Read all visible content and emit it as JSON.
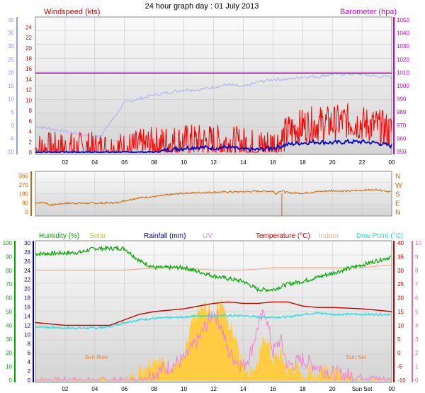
{
  "title": "24 hour graph day : 01 July 2013",
  "x_ticks": [
    "02",
    "04",
    "06",
    "08",
    "10",
    "12",
    "14",
    "16",
    "18",
    "20",
    "22",
    "00"
  ],
  "x_ticks_bottom": [
    "02",
    "04",
    "06",
    "08",
    "10",
    "12",
    "14",
    "16",
    "18",
    "20",
    "Sun Set",
    "00"
  ],
  "colors": {
    "wind": "#d00000",
    "gust": "#ff0000",
    "wind_avg": "#0000cc",
    "baro": "#cc00cc",
    "baro_line": "#aab0ee",
    "dir": "#cc6600",
    "humidity": "#00aa00",
    "solar": "#ffcc44",
    "rain": "#000088",
    "uv": "#ee88cc",
    "temp": "#cc0000",
    "indoor": "#f4b090",
    "dew": "#22dddd",
    "axis_wind": "#9999ee",
    "axis_dir": "#cc6600",
    "axis_uv": "#ee6699"
  },
  "chart_data": [
    {
      "type": "line",
      "name": "wind-baro",
      "title": "Windspeed (kts)",
      "ylabel_left": "Windspeed (kts)",
      "ylabel_right": "Barometer (hpa)",
      "left_ticks": [
        "-10",
        "-5",
        "0",
        "5",
        "10",
        "15",
        "20",
        "25",
        "30",
        "35",
        "40"
      ],
      "wind_ticks": [
        "0",
        "2",
        "4",
        "6",
        "8",
        "10",
        "12",
        "14",
        "16",
        "18",
        "20",
        "22",
        "24"
      ],
      "right_ticks": [
        "950",
        "960",
        "970",
        "980",
        "990",
        "1000",
        "1010",
        "1020",
        "1030",
        "1040",
        "1050"
      ],
      "ylim_wind": [
        0,
        25
      ],
      "ylim_baro": [
        950,
        1050
      ],
      "series": [
        {
          "name": "Barometer",
          "axis": "baro",
          "x": [
            0,
            24
          ],
          "values": [
            1009.5,
            1009.5
          ]
        },
        {
          "name": "Barometer",
          "axis": "baro2",
          "x": [
            0,
            2,
            4,
            4.5,
            5,
            5.5,
            6,
            8,
            10,
            11,
            12,
            13,
            14,
            15,
            16,
            17,
            18,
            19,
            20,
            21,
            22,
            23,
            24
          ],
          "values": [
            -2.5,
            -3.5,
            -4.5,
            -4,
            -2,
            0,
            2,
            3.5,
            4.5,
            4.5,
            5,
            5.5,
            5,
            6,
            6.5,
            6.5,
            7,
            7,
            7.5,
            7.5,
            7.5,
            7,
            7
          ]
        },
        {
          "name": "Wind",
          "axis": "wind",
          "x": [
            0,
            2,
            4,
            6,
            8,
            10,
            12,
            14,
            15,
            16,
            16.5,
            17,
            18,
            19,
            20,
            21,
            22,
            23,
            24
          ],
          "values": [
            0.5,
            0.5,
            0.5,
            0.5,
            1.5,
            2,
            2,
            1.5,
            1,
            1.5,
            2,
            4,
            5,
            5.5,
            5.5,
            6,
            5.5,
            5,
            4
          ]
        },
        {
          "name": "Wind",
          "axis": "wind",
          "x": [
            0,
            4,
            6,
            8,
            9,
            10,
            11,
            12,
            13,
            14,
            15,
            16,
            17,
            18,
            19,
            20,
            21,
            22,
            23,
            24
          ],
          "values": [
            0,
            0,
            0,
            0,
            0.5,
            0.8,
            1,
            0.8,
            1,
            0.5,
            0.5,
            0.8,
            1.5,
            1.8,
            2,
            1.8,
            2,
            2,
            1.8,
            1.2
          ]
        }
      ]
    },
    {
      "type": "line",
      "name": "direction",
      "ylim": [
        0,
        360
      ],
      "left_ticks": [
        "0",
        "90",
        "180",
        "270",
        "360"
      ],
      "right_labels": [
        "N",
        "W",
        "S",
        "E",
        "N"
      ],
      "x": [
        0,
        0.7,
        1,
        2,
        4,
        5.5,
        6,
        7,
        8,
        9,
        10,
        12,
        14,
        15,
        16,
        16.2,
        16.5,
        17,
        18,
        19,
        20,
        21,
        22,
        23,
        24
      ],
      "values": [
        90,
        90,
        65,
        85,
        85,
        90,
        110,
        140,
        150,
        170,
        185,
        195,
        200,
        205,
        205,
        180,
        210,
        190,
        185,
        200,
        210,
        205,
        215,
        220,
        200
      ]
    },
    {
      "type": "line",
      "name": "humidity-temp",
      "legend": [
        "Humidity (%)",
        "Solar",
        "Rainfall (mm)",
        "UV",
        "Temperature (°C)",
        "Indoor",
        "Dew Point (°C)"
      ],
      "humidity_ticks": [
        "0",
        "10",
        "20",
        "30",
        "40",
        "50",
        "60",
        "70",
        "80",
        "90",
        "100"
      ],
      "rain_ticks": [
        "0",
        "2",
        "4",
        "6",
        "8",
        "10",
        "12",
        "14",
        "16",
        "18",
        "20",
        "22",
        "24",
        "26",
        "28",
        "30"
      ],
      "temp_ticks": [
        "-10",
        "-5",
        "0",
        "5",
        "10",
        "15",
        "20",
        "25",
        "30",
        "35",
        "40"
      ],
      "uv_ticks": [
        "0",
        "1",
        "2",
        "3",
        "4",
        "5",
        "6",
        "7",
        "8",
        "9",
        "10"
      ],
      "annotations": [
        "Sun Rise",
        "Sun Set"
      ],
      "series": [
        {
          "name": "Humidity (%)",
          "axis": "humidity",
          "x": [
            0,
            3,
            4,
            6,
            7,
            8,
            10,
            12,
            14,
            15,
            16,
            17,
            18,
            20,
            22,
            24
          ],
          "values": [
            92,
            93,
            96,
            96,
            87,
            82,
            82,
            76,
            72,
            66,
            66,
            70,
            72,
            78,
            84,
            90
          ]
        },
        {
          "name": "Indoor",
          "axis": "temp",
          "x": [
            0,
            2,
            4,
            6,
            8,
            10,
            12,
            14,
            16,
            18,
            20,
            22,
            24
          ],
          "values": [
            30,
            30,
            30,
            30,
            31,
            31,
            30,
            30,
            31,
            31,
            31,
            31,
            32
          ]
        },
        {
          "name": "Temperature (°C)",
          "axis": "temp",
          "x": [
            0,
            2,
            4,
            5,
            6,
            7,
            8,
            10,
            11,
            12,
            13,
            14,
            15,
            16,
            17,
            18,
            19,
            20,
            22,
            24
          ],
          "values": [
            11,
            10,
            10,
            10,
            12,
            14,
            15,
            16,
            17,
            18,
            18.5,
            18,
            18,
            18.5,
            18.5,
            17,
            16.5,
            16.5,
            16,
            15
          ]
        },
        {
          "name": "Dew Point (°C)",
          "axis": "temp",
          "x": [
            0,
            2,
            4,
            5,
            6,
            7,
            8,
            10,
            11,
            12,
            13,
            14,
            15,
            16,
            17,
            18,
            19,
            20,
            22,
            24
          ],
          "values": [
            9.5,
            9,
            9,
            9.5,
            11,
            12,
            12.5,
            13,
            13.5,
            13.5,
            13.5,
            13.5,
            13,
            13,
            13,
            14,
            14.5,
            14,
            14,
            14
          ]
        },
        {
          "name": "Solar",
          "axis": "rain",
          "x": [
            0,
            6,
            6.5,
            7,
            8,
            9,
            10,
            10.5,
            11,
            11.5,
            12,
            12.5,
            13,
            13.5,
            14,
            14.5,
            15,
            15.5,
            16,
            16.5,
            17,
            17.5,
            18,
            18.5,
            19,
            19.5,
            20,
            21,
            22,
            24
          ],
          "values": [
            0,
            0,
            0.5,
            2,
            5,
            3,
            4,
            12,
            15,
            16,
            14,
            18,
            12,
            10,
            3,
            2,
            4,
            10,
            4,
            6,
            2,
            3,
            1,
            2,
            1,
            4,
            1,
            0.5,
            0,
            0
          ]
        },
        {
          "name": "UV",
          "axis": "uv",
          "x": [
            0,
            7,
            8,
            9,
            10,
            11,
            11.5,
            12,
            12.5,
            13,
            13.5,
            14,
            14.5,
            15,
            15.5,
            16,
            16.5,
            17,
            18,
            19,
            20,
            24
          ],
          "values": [
            0,
            0,
            0.5,
            1,
            1.5,
            3,
            4,
            5,
            4,
            2,
            1.5,
            1,
            2,
            4,
            5,
            2,
            3,
            1,
            1.5,
            1,
            0.5,
            0
          ]
        }
      ]
    }
  ]
}
